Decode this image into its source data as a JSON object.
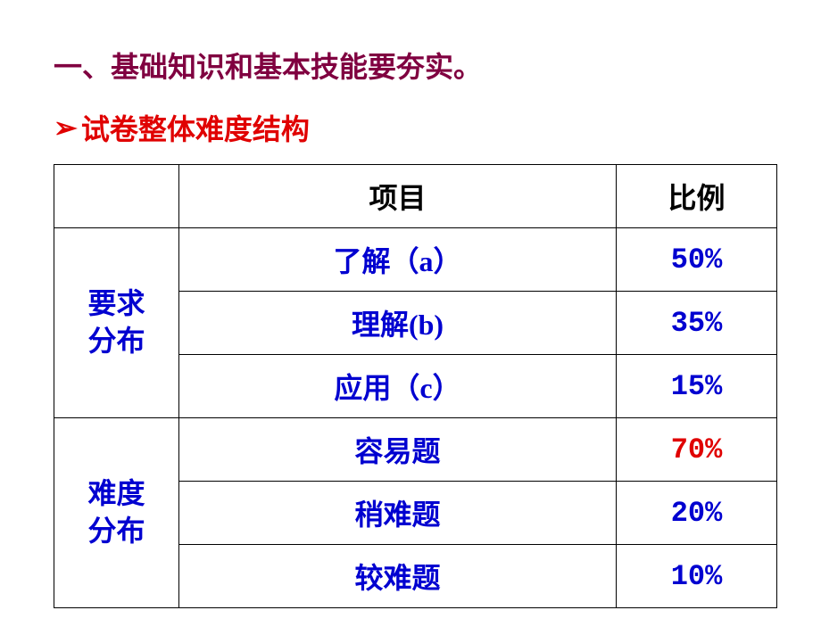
{
  "heading": "一、基础知识和基本技能要夯实。",
  "subheading": "试卷整体难度结构",
  "table": {
    "header": {
      "blank": "",
      "item": "项目",
      "ratio": "比例"
    },
    "group1": {
      "label_line1": "要求",
      "label_line2": "分布",
      "rows": [
        {
          "item": "了解（a）",
          "ratio": "50%",
          "highlight": false
        },
        {
          "item": "理解(b)",
          "ratio": "35%",
          "highlight": false
        },
        {
          "item": "应用（c）",
          "ratio": "15%",
          "highlight": false
        }
      ]
    },
    "group2": {
      "label_line1": "难度",
      "label_line2": "分布",
      "rows": [
        {
          "item": "容易题",
          "ratio": "70%",
          "highlight": true
        },
        {
          "item": "稍难题",
          "ratio": "20%",
          "highlight": false
        },
        {
          "item": "较难题",
          "ratio": "10%",
          "highlight": false
        }
      ]
    }
  },
  "colors": {
    "heading": "#800040",
    "subheading": "#e00000",
    "table_text": "#0000d0",
    "highlight": "#e00000",
    "header_text": "#000000",
    "border": "#000000",
    "background": "#ffffff"
  },
  "fontsize": {
    "heading": 32,
    "subheading": 32,
    "table": 32
  }
}
